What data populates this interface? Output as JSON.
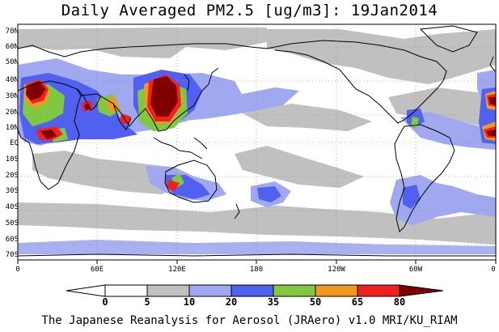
{
  "map": {
    "title": "Daily Averaged PM2.5 [ug/m3]: 19Jan2014",
    "credit": "The Japanese Reanalysis for Aerosol (JRAero) v1.0 MRI/KU_RIAM",
    "lat_labels": [
      "70N",
      "60N",
      "50N",
      "40N",
      "30N",
      "20N",
      "10N",
      "EQ",
      "10S",
      "20S",
      "30S",
      "40S",
      "50S",
      "60S",
      "70S"
    ],
    "lon_labels": [
      "0",
      "60E",
      "120E",
      "180",
      "120W",
      "60W",
      "0"
    ],
    "colorbar": {
      "labels": [
        "0",
        "5",
        "10",
        "20",
        "35",
        "50",
        "65",
        "80"
      ],
      "colors": [
        "#ffffff",
        "#c0c0c0",
        "#a0a8f0",
        "#5060f0",
        "#80c840",
        "#f09820",
        "#f02020",
        "#800000"
      ]
    }
  }
}
